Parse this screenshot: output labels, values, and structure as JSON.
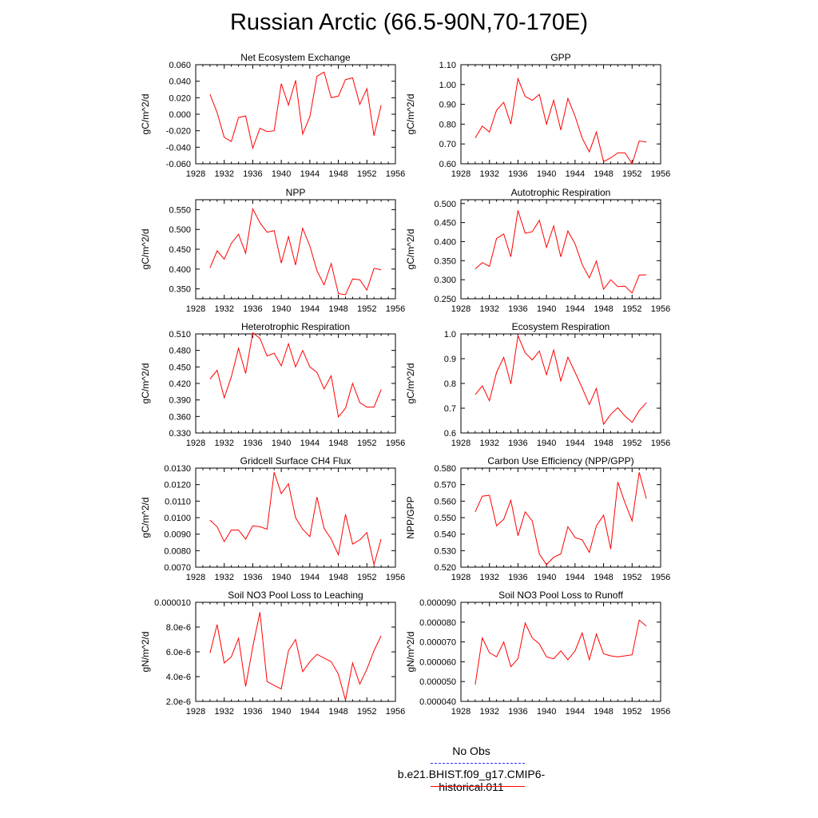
{
  "title": "Russian Arctic (66.5-90N,70-170E)",
  "legend": [
    {
      "label": "No Obs",
      "color": "#3333ff",
      "dash": true
    },
    {
      "label": "b.e21.BHIST.f09_g17.CMIP6-historical.011",
      "color": "#ff0000",
      "dash": false
    }
  ],
  "chart_data": [
    {
      "type": "line",
      "title": "Net Ecosystem Exchange",
      "ylabel": "gC/m^2/d",
      "xlim": [
        1928,
        1956
      ],
      "xticks": [
        "1928",
        "1932",
        "1936",
        "1940",
        "1944",
        "1948",
        "1952",
        "1956"
      ],
      "ylim": [
        -0.06,
        0.06
      ],
      "yticks": [
        -0.06,
        -0.04,
        -0.02,
        0.0,
        0.02,
        0.04,
        0.06
      ],
      "ytick_labels": [
        "-0.060",
        "-0.040",
        "-0.020",
        "0.000",
        "0.020",
        "0.040",
        "0.060"
      ],
      "series": [
        {
          "color": "#ff0000",
          "x": [
            1930,
            1931,
            1932,
            1933,
            1934,
            1935,
            1936,
            1937,
            1938,
            1939,
            1940,
            1941,
            1942,
            1943,
            1944,
            1945,
            1946,
            1947,
            1948,
            1949,
            1950,
            1951,
            1952,
            1953,
            1954
          ],
          "values": [
            0.024,
            0.002,
            -0.028,
            -0.033,
            -0.004,
            -0.002,
            -0.041,
            -0.017,
            -0.021,
            -0.02,
            0.037,
            0.011,
            0.041,
            -0.024,
            -0.003,
            0.046,
            0.051,
            0.02,
            0.022,
            0.042,
            0.044,
            0.012,
            0.031,
            -0.026,
            0.011
          ]
        }
      ]
    },
    {
      "type": "line",
      "title": "GPP",
      "ylabel": "gC/m^2/d",
      "xlim": [
        1928,
        1956
      ],
      "xticks": [
        "1928",
        "1932",
        "1936",
        "1940",
        "1944",
        "1948",
        "1952",
        "1956"
      ],
      "ylim": [
        0.6,
        1.1
      ],
      "yticks": [
        0.6,
        0.7,
        0.8,
        0.9,
        1.0,
        1.1
      ],
      "ytick_labels": [
        "0.60",
        "0.70",
        "0.80",
        "0.90",
        "1.00",
        "1.10"
      ],
      "series": [
        {
          "color": "#ff0000",
          "x": [
            1930,
            1931,
            1932,
            1933,
            1934,
            1935,
            1936,
            1937,
            1938,
            1939,
            1940,
            1941,
            1942,
            1943,
            1944,
            1945,
            1946,
            1947,
            1948,
            1949,
            1950,
            1951,
            1952,
            1953,
            1954
          ],
          "values": [
            0.73,
            0.79,
            0.76,
            0.87,
            0.91,
            0.8,
            1.03,
            0.94,
            0.92,
            0.95,
            0.8,
            0.92,
            0.77,
            0.93,
            0.84,
            0.73,
            0.66,
            0.76,
            0.61,
            0.63,
            0.655,
            0.655,
            0.6,
            0.715,
            0.71
          ]
        }
      ]
    },
    {
      "type": "line",
      "title": "NPP",
      "ylabel": "gC/m^2/d",
      "xlim": [
        1928,
        1956
      ],
      "xticks": [
        "1928",
        "1932",
        "1936",
        "1940",
        "1944",
        "1948",
        "1952",
        "1956"
      ],
      "ylim": [
        0.325,
        0.575
      ],
      "yticks": [
        0.35,
        0.4,
        0.45,
        0.5,
        0.55
      ],
      "ytick_labels": [
        "0.350",
        "0.400",
        "0.450",
        "0.500",
        "0.550"
      ],
      "series": [
        {
          "color": "#ff0000",
          "x": [
            1930,
            1931,
            1932,
            1933,
            1934,
            1935,
            1936,
            1937,
            1938,
            1939,
            1940,
            1941,
            1942,
            1943,
            1944,
            1945,
            1946,
            1947,
            1948,
            1949,
            1950,
            1951,
            1952,
            1953,
            1954
          ],
          "values": [
            0.403,
            0.446,
            0.425,
            0.465,
            0.488,
            0.44,
            0.552,
            0.517,
            0.493,
            0.497,
            0.415,
            0.482,
            0.41,
            0.503,
            0.458,
            0.396,
            0.36,
            0.414,
            0.338,
            0.335,
            0.375,
            0.373,
            0.347,
            0.402,
            0.398
          ]
        }
      ]
    },
    {
      "type": "line",
      "title": "Autotrophic Respiration",
      "ylabel": "gC/m^2/d",
      "xlim": [
        1928,
        1956
      ],
      "xticks": [
        "1928",
        "1932",
        "1936",
        "1940",
        "1944",
        "1948",
        "1952",
        "1956"
      ],
      "ylim": [
        0.25,
        0.51
      ],
      "yticks": [
        0.25,
        0.3,
        0.35,
        0.4,
        0.45,
        0.5
      ],
      "ytick_labels": [
        "0.250",
        "0.300",
        "0.350",
        "0.400",
        "0.450",
        "0.500"
      ],
      "series": [
        {
          "color": "#ff0000",
          "x": [
            1930,
            1931,
            1932,
            1933,
            1934,
            1935,
            1936,
            1937,
            1938,
            1939,
            1940,
            1941,
            1942,
            1943,
            1944,
            1945,
            1946,
            1947,
            1948,
            1949,
            1950,
            1951,
            1952,
            1953,
            1954
          ],
          "values": [
            0.328,
            0.345,
            0.335,
            0.408,
            0.42,
            0.36,
            0.482,
            0.422,
            0.426,
            0.456,
            0.385,
            0.441,
            0.36,
            0.428,
            0.394,
            0.34,
            0.305,
            0.349,
            0.275,
            0.3,
            0.282,
            0.283,
            0.265,
            0.312,
            0.313
          ]
        }
      ]
    },
    {
      "type": "line",
      "title": "Heterotrophic Respiration",
      "ylabel": "gC/m^2/d",
      "xlim": [
        1928,
        1956
      ],
      "xticks": [
        "1928",
        "1932",
        "1936",
        "1940",
        "1944",
        "1948",
        "1952",
        "1956"
      ],
      "ylim": [
        0.33,
        0.51
      ],
      "yticks": [
        0.33,
        0.36,
        0.39,
        0.42,
        0.45,
        0.48,
        0.51
      ],
      "ytick_labels": [
        "0.330",
        "0.360",
        "0.390",
        "0.420",
        "0.450",
        "0.480",
        "0.510"
      ],
      "series": [
        {
          "color": "#ff0000",
          "x": [
            1930,
            1931,
            1932,
            1933,
            1934,
            1935,
            1936,
            1937,
            1938,
            1939,
            1940,
            1941,
            1942,
            1943,
            1944,
            1945,
            1946,
            1947,
            1948,
            1949,
            1950,
            1951,
            1952,
            1953,
            1954
          ],
          "values": [
            0.428,
            0.444,
            0.394,
            0.432,
            0.484,
            0.438,
            0.512,
            0.502,
            0.47,
            0.475,
            0.452,
            0.492,
            0.45,
            0.48,
            0.45,
            0.44,
            0.41,
            0.434,
            0.359,
            0.375,
            0.42,
            0.385,
            0.377,
            0.377,
            0.409
          ]
        }
      ]
    },
    {
      "type": "line",
      "title": "Ecosystem Respiration",
      "ylabel": "gC/m^2/d",
      "xlim": [
        1928,
        1956
      ],
      "xticks": [
        "1928",
        "1932",
        "1936",
        "1940",
        "1944",
        "1948",
        "1952",
        "1956"
      ],
      "ylim": [
        0.6,
        1.0
      ],
      "yticks": [
        0.6,
        0.7,
        0.8,
        0.9,
        1.0
      ],
      "ytick_labels": [
        "0.6",
        "0.7",
        "0.8",
        "0.9",
        "1.0"
      ],
      "series": [
        {
          "color": "#ff0000",
          "x": [
            1930,
            1931,
            1932,
            1933,
            1934,
            1935,
            1936,
            1937,
            1938,
            1939,
            1940,
            1941,
            1942,
            1943,
            1944,
            1945,
            1946,
            1947,
            1948,
            1949,
            1950,
            1951,
            1952,
            1953,
            1954
          ],
          "values": [
            0.755,
            0.79,
            0.73,
            0.845,
            0.905,
            0.798,
            0.993,
            0.924,
            0.895,
            0.931,
            0.835,
            0.935,
            0.81,
            0.906,
            0.845,
            0.782,
            0.715,
            0.78,
            0.635,
            0.675,
            0.702,
            0.668,
            0.643,
            0.69,
            0.722
          ]
        }
      ]
    },
    {
      "type": "line",
      "title": "Gridcell Surface CH4 Flux",
      "ylabel": "gC/m^2/d",
      "xlim": [
        1928,
        1956
      ],
      "xticks": [
        "1928",
        "1932",
        "1936",
        "1940",
        "1944",
        "1948",
        "1952",
        "1956"
      ],
      "ylim": [
        0.007,
        0.013
      ],
      "yticks": [
        0.007,
        0.008,
        0.009,
        0.01,
        0.011,
        0.012,
        0.013
      ],
      "ytick_labels": [
        "0.0070",
        "0.0080",
        "0.0090",
        "0.0100",
        "0.0110",
        "0.0120",
        "0.0130"
      ],
      "series": [
        {
          "color": "#ff0000",
          "x": [
            1930,
            1931,
            1932,
            1933,
            1934,
            1935,
            1936,
            1937,
            1938,
            1939,
            1940,
            1941,
            1942,
            1943,
            1944,
            1945,
            1946,
            1947,
            1948,
            1949,
            1950,
            1951,
            1952,
            1953,
            1954
          ],
          "values": [
            0.00985,
            0.00945,
            0.00855,
            0.00925,
            0.00925,
            0.0087,
            0.0095,
            0.00945,
            0.0093,
            0.01275,
            0.01145,
            0.01205,
            0.01,
            0.0093,
            0.00885,
            0.01125,
            0.00935,
            0.0087,
            0.00775,
            0.0102,
            0.0084,
            0.00865,
            0.0091,
            0.00715,
            0.0087
          ]
        }
      ]
    },
    {
      "type": "line",
      "title": "Carbon Use Efficiency (NPP/GPP)",
      "ylabel": "NPP/GPP",
      "xlim": [
        1928,
        1956
      ],
      "xticks": [
        "1928",
        "1932",
        "1936",
        "1940",
        "1944",
        "1948",
        "1952",
        "1956"
      ],
      "ylim": [
        0.52,
        0.58
      ],
      "yticks": [
        0.52,
        0.53,
        0.54,
        0.55,
        0.56,
        0.57,
        0.58
      ],
      "ytick_labels": [
        "0.520",
        "0.530",
        "0.540",
        "0.550",
        "0.560",
        "0.570",
        "0.580"
      ],
      "series": [
        {
          "color": "#ff0000",
          "x": [
            1930,
            1931,
            1932,
            1933,
            1934,
            1935,
            1936,
            1937,
            1938,
            1939,
            1940,
            1941,
            1942,
            1943,
            1944,
            1945,
            1946,
            1947,
            1948,
            1949,
            1950,
            1951,
            1952,
            1953,
            1954
          ],
          "values": [
            0.5535,
            0.563,
            0.5635,
            0.545,
            0.549,
            0.5605,
            0.539,
            0.5535,
            0.548,
            0.528,
            0.5215,
            0.526,
            0.528,
            0.5445,
            0.538,
            0.5365,
            0.529,
            0.545,
            0.5515,
            0.531,
            0.5715,
            0.559,
            0.548,
            0.5775,
            0.5615
          ]
        }
      ]
    },
    {
      "type": "line",
      "title": "Soil NO3 Pool Loss to Leaching",
      "ylabel": "gN/m^2/d",
      "xlim": [
        1928,
        1956
      ],
      "xticks": [
        "1928",
        "1932",
        "1936",
        "1940",
        "1944",
        "1948",
        "1952",
        "1956"
      ],
      "ylim": [
        2e-06,
        1e-05
      ],
      "yticks": [
        2e-06,
        4e-06,
        6e-06,
        8e-06,
        1e-05
      ],
      "ytick_labels": [
        "2.0e-6",
        "4.0e-6",
        "6.0e-6",
        "8.0e-6",
        "0.000010"
      ],
      "series": [
        {
          "color": "#ff0000",
          "x": [
            1930,
            1931,
            1932,
            1933,
            1934,
            1935,
            1936,
            1937,
            1938,
            1939,
            1940,
            1941,
            1942,
            1943,
            1944,
            1945,
            1946,
            1947,
            1948,
            1949,
            1950,
            1951,
            1952,
            1953,
            1954
          ],
          "values": [
            5.9e-06,
            8.2e-06,
            5.1e-06,
            5.6e-06,
            7.1e-06,
            3.2e-06,
            6.4e-06,
            9.2e-06,
            3.6e-06,
            3.3e-06,
            3e-06,
            6.1e-06,
            7e-06,
            4.4e-06,
            5.2e-06,
            5.8e-06,
            5.5e-06,
            5.2e-06,
            4.2e-06,
            2.1e-06,
            5.1e-06,
            3.4e-06,
            4.6e-06,
            6.1e-06,
            7.3e-06
          ]
        }
      ]
    },
    {
      "type": "line",
      "title": "Soil NO3 Pool Loss to Runoff",
      "ylabel": "gN/m^2/d",
      "xlim": [
        1928,
        1956
      ],
      "xticks": [
        "1928",
        "1932",
        "1936",
        "1940",
        "1944",
        "1948",
        "1952",
        "1956"
      ],
      "ylim": [
        4e-05,
        9e-05
      ],
      "yticks": [
        4e-05,
        5e-05,
        6e-05,
        7e-05,
        8e-05,
        9e-05
      ],
      "ytick_labels": [
        "0.000040",
        "0.000050",
        "0.000060",
        "0.000070",
        "0.000080",
        "0.000090"
      ],
      "series": [
        {
          "color": "#ff0000",
          "x": [
            1930,
            1931,
            1932,
            1933,
            1934,
            1935,
            1936,
            1937,
            1938,
            1939,
            1940,
            1941,
            1942,
            1943,
            1944,
            1945,
            1946,
            1947,
            1948,
            1949,
            1950,
            1951,
            1952,
            1953,
            1954
          ],
          "values": [
            4.85e-05,
            7.2e-05,
            6.45e-05,
            6.25e-05,
            7e-05,
            5.75e-05,
            6.15e-05,
            7.95e-05,
            7.2e-05,
            6.9e-05,
            6.25e-05,
            6.15e-05,
            6.55e-05,
            6.1e-05,
            6.55e-05,
            7.45e-05,
            6.1e-05,
            7.4e-05,
            6.4e-05,
            6.3e-05,
            6.25e-05,
            6.3e-05,
            6.35e-05,
            8.1e-05,
            7.8e-05
          ]
        }
      ]
    }
  ]
}
